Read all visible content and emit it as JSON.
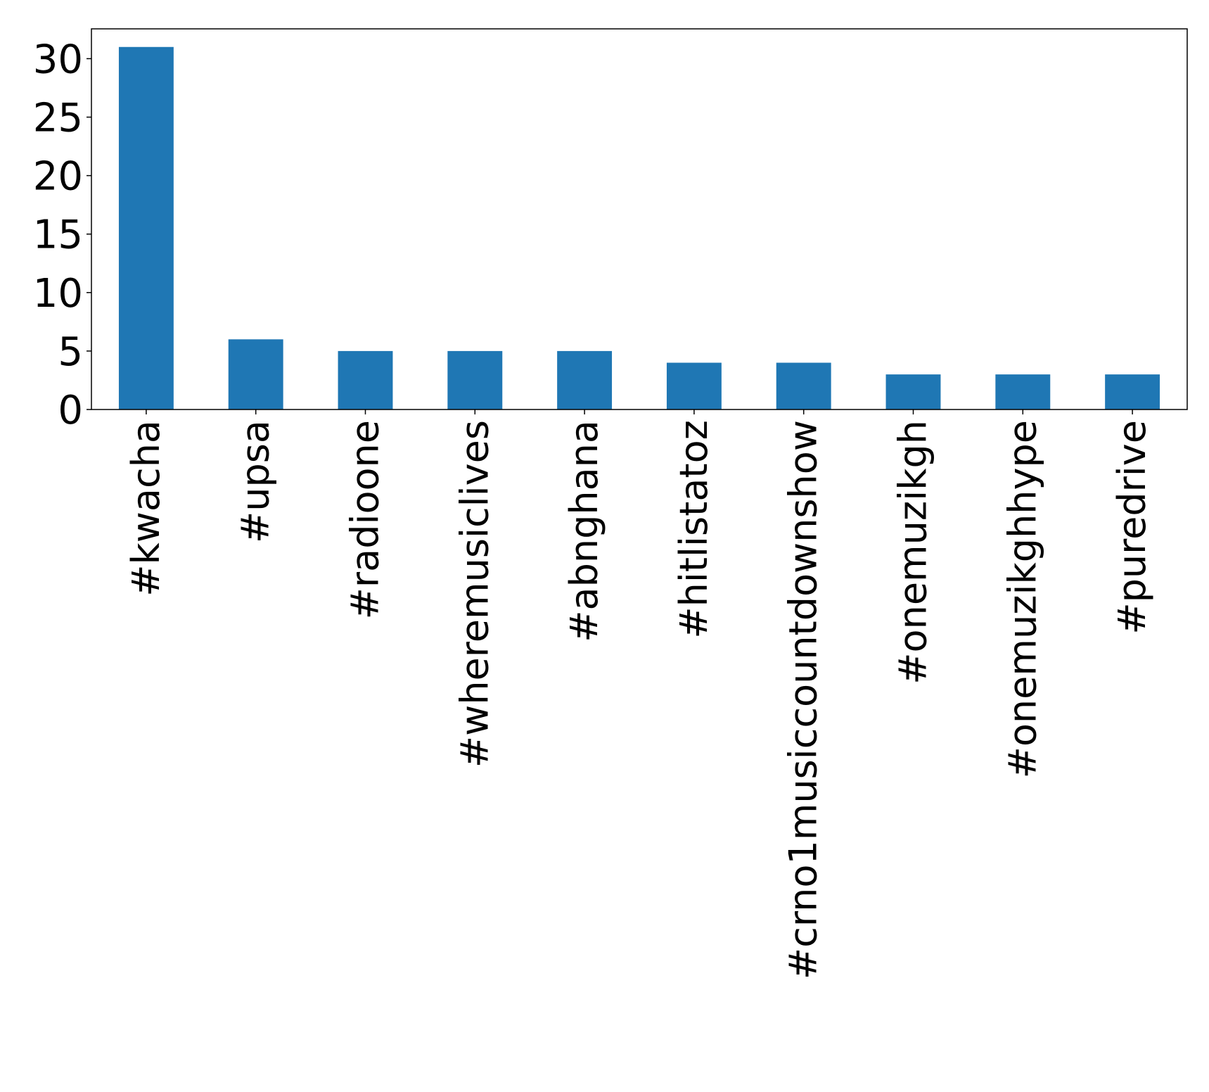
{
  "chart_data": {
    "type": "bar",
    "title": "",
    "xlabel": "",
    "ylabel": "",
    "categories": [
      "#kwacha",
      "#upsa",
      "#radioone",
      "#wheremusiclives",
      "#abnghana",
      "#hitlistatoz",
      "#crno1musiccountdownshow",
      "#onemuzikgh",
      "#onemuzikghhype",
      "#puredrive"
    ],
    "values": [
      31,
      6,
      5,
      5,
      5,
      4,
      4,
      3,
      3,
      3
    ],
    "ylim": [
      0,
      32.55
    ],
    "yticks": [
      0,
      5,
      10,
      15,
      20,
      25,
      30
    ],
    "ytick_labels": [
      "0",
      "5",
      "10",
      "15",
      "20",
      "25",
      "30"
    ],
    "grid": false,
    "legend": "none",
    "bar_color": "#1f77b4"
  }
}
